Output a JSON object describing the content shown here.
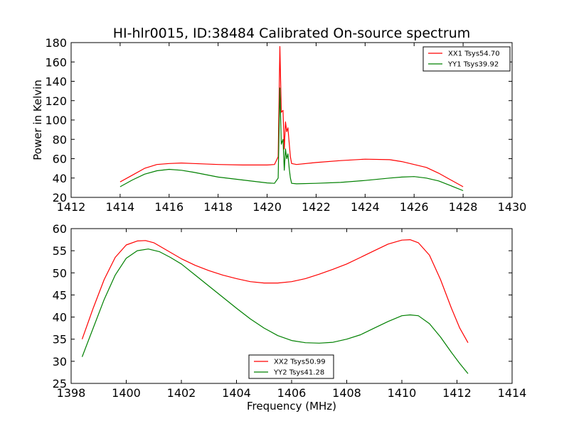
{
  "chart_data": [
    {
      "type": "line",
      "title": "HI-hlr0015, ID:38484 Calibrated On-source spectrum",
      "xlabel": "",
      "ylabel": "Power in Kelvin",
      "xlim": [
        1412,
        1430
      ],
      "ylim": [
        20,
        180
      ],
      "xticks": [
        1412,
        1414,
        1416,
        1418,
        1420,
        1422,
        1424,
        1426,
        1428,
        1430
      ],
      "yticks": [
        20,
        40,
        60,
        80,
        100,
        120,
        140,
        160,
        180
      ],
      "grid": false,
      "legend_position": "top-right",
      "series": [
        {
          "name": "XX1 Tsys54.70",
          "color": "#ff0000",
          "x": [
            1414,
            1414.5,
            1415,
            1415.5,
            1416,
            1416.5,
            1417,
            1418,
            1419,
            1420,
            1420.3,
            1420.45,
            1420.52,
            1420.58,
            1420.65,
            1420.7,
            1420.75,
            1420.8,
            1420.85,
            1420.9,
            1420.95,
            1421,
            1421.2,
            1422,
            1423,
            1424,
            1425,
            1425.5,
            1426,
            1426.5,
            1427,
            1427.5,
            1428
          ],
          "y": [
            36,
            43,
            50,
            54,
            55,
            55.5,
            55,
            54,
            53.5,
            53.5,
            54,
            62,
            176,
            108,
            110,
            70,
            98,
            88,
            92,
            76,
            62,
            55,
            54,
            56,
            58,
            59.5,
            59,
            57,
            54,
            51,
            45,
            38,
            31
          ]
        },
        {
          "name": "YY1 Tsys39.92",
          "color": "#008000",
          "x": [
            1414,
            1414.5,
            1415,
            1415.5,
            1416,
            1416.5,
            1417,
            1418,
            1419,
            1420,
            1420.3,
            1420.45,
            1420.52,
            1420.58,
            1420.65,
            1420.7,
            1420.75,
            1420.8,
            1420.85,
            1420.9,
            1420.95,
            1421,
            1421.2,
            1422,
            1423,
            1424,
            1425,
            1425.5,
            1426,
            1426.5,
            1427,
            1427.5,
            1428
          ],
          "y": [
            31,
            38,
            44,
            47.5,
            49,
            48,
            46,
            41,
            38,
            35,
            34.5,
            40,
            133,
            75,
            80,
            48,
            70,
            60,
            65,
            50,
            40,
            34.5,
            34,
            34.5,
            35.5,
            37.5,
            40,
            41,
            41.5,
            40,
            37,
            32,
            27
          ]
        }
      ]
    },
    {
      "type": "line",
      "title": "",
      "xlabel": "Frequency (MHz)",
      "ylabel": "",
      "xlim": [
        1398,
        1414
      ],
      "ylim": [
        25,
        60
      ],
      "xticks": [
        1398,
        1400,
        1402,
        1404,
        1406,
        1408,
        1410,
        1412,
        1414
      ],
      "yticks": [
        25,
        30,
        35,
        40,
        45,
        50,
        55,
        60
      ],
      "grid": false,
      "legend_position": "bottom-center",
      "series": [
        {
          "name": "XX2 Tsys50.99",
          "color": "#ff0000",
          "x": [
            1398.4,
            1398.8,
            1399.2,
            1399.6,
            1400,
            1400.4,
            1400.7,
            1401,
            1401.5,
            1402,
            1402.5,
            1403,
            1403.5,
            1404,
            1404.5,
            1405,
            1405.5,
            1406,
            1406.5,
            1407,
            1407.5,
            1408,
            1408.5,
            1409,
            1409.5,
            1410,
            1410.3,
            1410.6,
            1411,
            1411.4,
            1411.8,
            1412.1,
            1412.4
          ],
          "y": [
            35,
            42,
            48.5,
            53.5,
            56.3,
            57.2,
            57.3,
            56.8,
            55,
            53.2,
            51.7,
            50.5,
            49.5,
            48.7,
            48,
            47.7,
            47.7,
            48,
            48.7,
            49.7,
            50.8,
            52,
            53.5,
            55,
            56.5,
            57.4,
            57.5,
            56.8,
            54,
            48.5,
            42,
            37.5,
            34.2
          ]
        },
        {
          "name": "YY2 Tsys41.28",
          "color": "#008000",
          "x": [
            1398.4,
            1398.8,
            1399.2,
            1399.6,
            1400,
            1400.4,
            1400.8,
            1401.2,
            1401.6,
            1402,
            1402.5,
            1403,
            1403.5,
            1404,
            1404.5,
            1405,
            1405.5,
            1406,
            1406.5,
            1407,
            1407.5,
            1408,
            1408.5,
            1409,
            1409.5,
            1410,
            1410.3,
            1410.6,
            1411,
            1411.4,
            1411.8,
            1412.1,
            1412.4
          ],
          "y": [
            31,
            37.5,
            44,
            49.5,
            53.3,
            55,
            55.4,
            54.8,
            53.5,
            52,
            49.5,
            47,
            44.5,
            42,
            39.6,
            37.5,
            35.8,
            34.7,
            34.2,
            34.1,
            34.3,
            35,
            36,
            37.5,
            39,
            40.3,
            40.5,
            40.3,
            38.5,
            35.5,
            32,
            29.5,
            27.2
          ]
        }
      ]
    }
  ]
}
